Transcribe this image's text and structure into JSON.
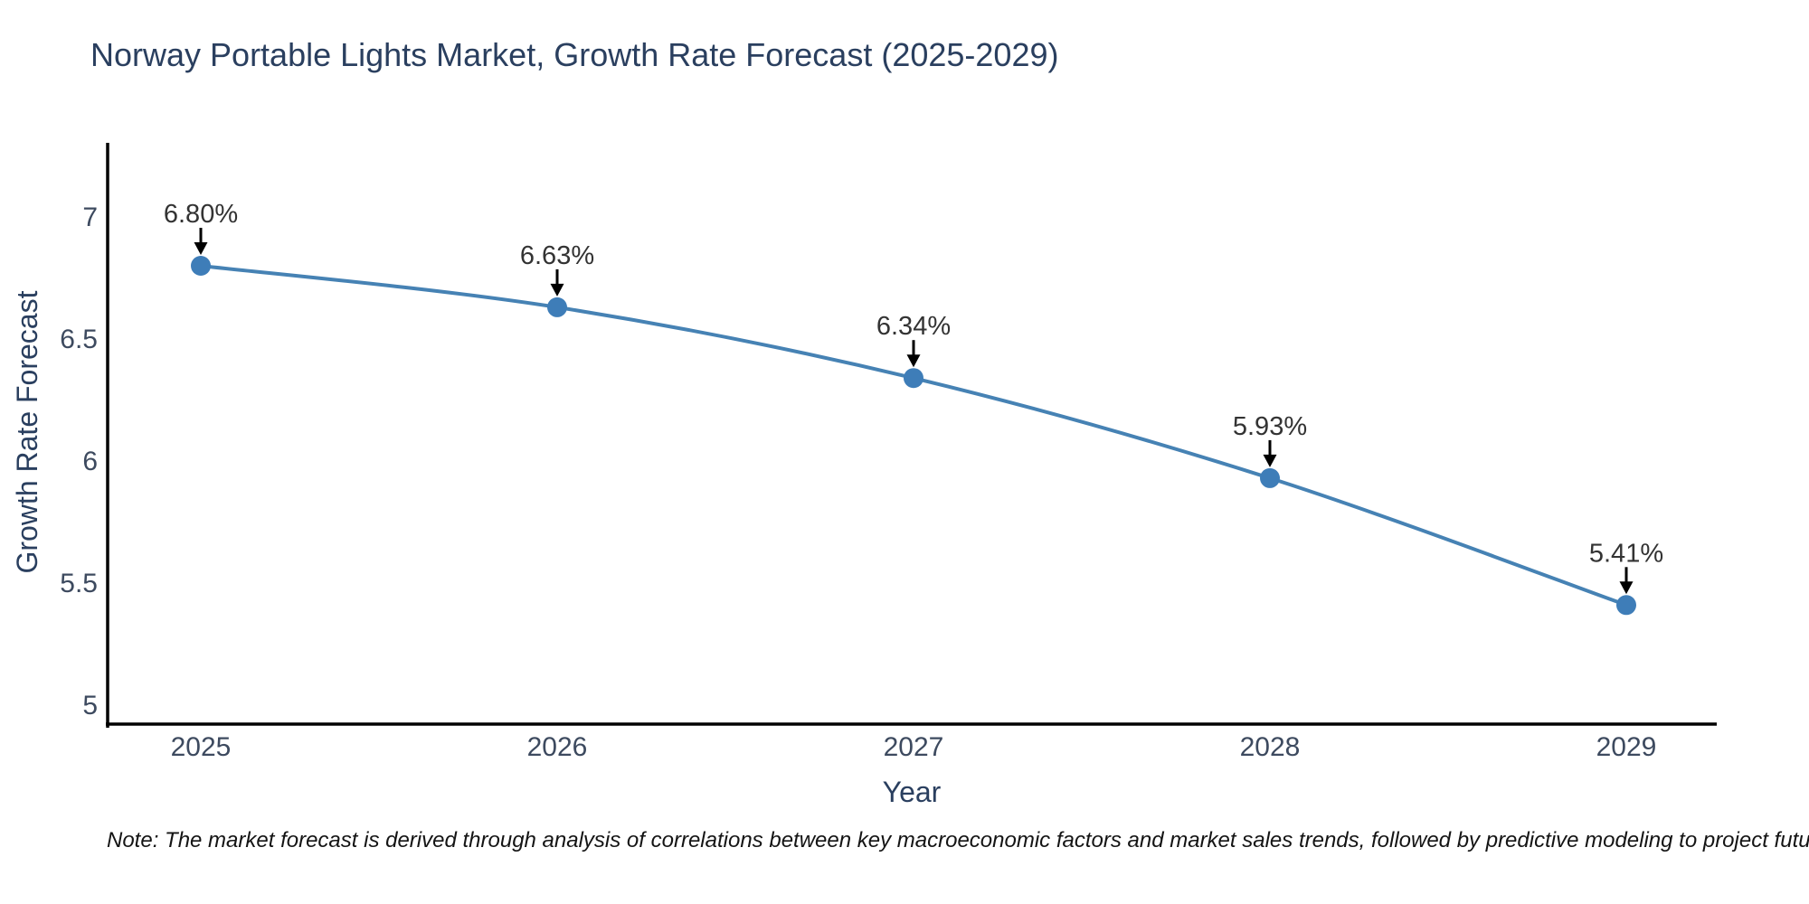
{
  "header": {
    "title": "Norway Portable Lights Market, Growth Rate Forecast (2025-2029)"
  },
  "footnote": {
    "text": "Note: The market forecast is derived through analysis of correlations between key macroeconomic factors and market sales trends, followed by predictive modeling to project future sales"
  },
  "chart_data": {
    "type": "line",
    "title": "Norway Portable Lights Market, Growth Rate Forecast (2025-2029)",
    "xlabel": "Year",
    "ylabel": "Growth Rate Forecast",
    "x": [
      2025,
      2026,
      2027,
      2028,
      2029
    ],
    "xtick_labels": [
      "2025",
      "2026",
      "2027",
      "2028",
      "2029"
    ],
    "values": [
      6.8,
      6.63,
      6.34,
      5.93,
      5.41
    ],
    "point_labels": [
      "6.80%",
      "6.63%",
      "6.34%",
      "5.93%",
      "5.41%"
    ],
    "yticks": [
      5,
      5.5,
      6,
      6.5,
      7
    ],
    "ytick_labels": [
      "5",
      "5.5",
      "6",
      "6.5",
      "7"
    ],
    "ylim": [
      4.92,
      7.3
    ],
    "grid": false,
    "legend": false,
    "annotation_style": "value labels above points with downward black arrows",
    "curve": "smooth"
  },
  "colors": {
    "background": "#ffffff",
    "line": "#4682b4",
    "marker": "#3e7db8",
    "axis": "#000000",
    "tick_label": "#3d4a5f",
    "title": "#2a3f5f",
    "axis_label": "#2a3f5f",
    "annotation_text": "#333333",
    "annotation_arrow": "#000000",
    "note_text": "#141414"
  }
}
